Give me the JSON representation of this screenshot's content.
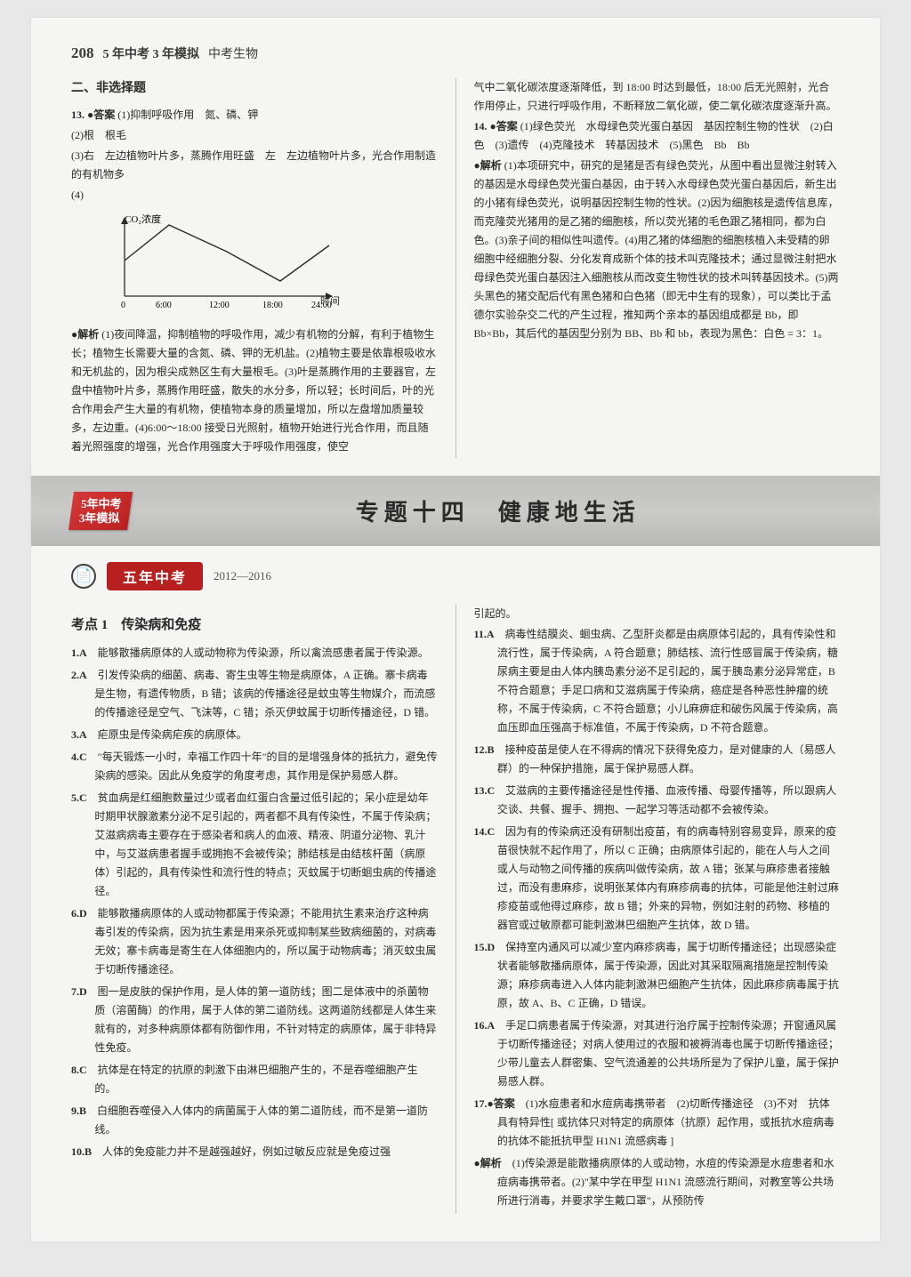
{
  "header": {
    "page_num": "208",
    "book_title": "5 年中考 3 年模拟",
    "book_sub": "中考生物"
  },
  "upper_left": {
    "section_head": "二、非选择题",
    "q13_label": "13.",
    "q13_ans_tag": "答案",
    "q13_1": "(1)抑制呼吸作用　氮、磷、钾",
    "q13_2": "(2)根　根毛",
    "q13_3": "(3)右　左边植物叶片多，蒸腾作用旺盛　左　左边植物叶片多，光合作用制造的有机物多",
    "q13_4": "(4)",
    "chart": {
      "y_label": "CO₂浓度",
      "x_label": "时间",
      "x_ticks": [
        "0",
        "6:00",
        "12:00",
        "18:00",
        "24:00"
      ],
      "points_x": [
        0,
        50,
        115,
        175,
        230
      ],
      "points_y": [
        55,
        15,
        45,
        78,
        38
      ],
      "axis_color": "#2a2a2a",
      "line_color": "#2a2a2a"
    },
    "jiexi_tag": "解析",
    "jiexi_body": "(1)夜间降温，抑制植物的呼吸作用，减少有机物的分解，有利于植物生长；植物生长需要大量的含氮、磷、钾的无机盐。(2)植物主要是依靠根吸收水和无机盐的，因为根尖成熟区生有大量根毛。(3)叶是蒸腾作用的主要器官，左盘中植物叶片多，蒸腾作用旺盛，散失的水分多，所以轻；长时间后，叶的光合作用会产生大量的有机物，使植物本身的质量增加，所以左盘增加质量较多，左边重。(4)6:00～18:00 接受日光照射，植物开始进行光合作用，而且随着光照强度的增强，光合作用强度大于呼吸作用强度，使空"
  },
  "upper_right": {
    "cont": "气中二氧化碳浓度逐渐降低，到 18:00 时达到最低，18:00 后无光照射，光合作用停止，只进行呼吸作用，不断释放二氧化碳，使二氧化碳浓度逐渐升高。",
    "q14_label": "14.",
    "q14_ans_tag": "答案",
    "q14_1": "(1)绿色荧光　水母绿色荧光蛋白基因　基因控制生物的性状　(2)白色　(3)遗传　(4)克隆技术　转基因技术　(5)黑色　Bb　Bb",
    "jiexi_tag": "解析",
    "jiexi_body": "(1)本项研究中，研究的是猪是否有绿色荧光，从图中看出显微注射转入的基因是水母绿色荧光蛋白基因，由于转入水母绿色荧光蛋白基因后，新生出的小猪有绿色荧光，说明基因控制生物的性状。(2)因为细胞核是遗传信息库，而克隆荧光猪用的是乙猪的细胞核，所以荧光猪的毛色跟乙猪相同，都为白色。(3)亲子间的相似性叫遗传。(4)用乙猪的体细胞的细胞核植入未受精的卵细胞中经细胞分裂、分化发育成新个体的技术叫克隆技术；通过显微注射把水母绿色荧光蛋白基因注入细胞核从而改变生物性状的技术叫转基因技术。(5)两头黑色的猪交配后代有黑色猪和白色猪（即无中生有的现象），可以类比于孟德尔实验杂交二代的产生过程，推知两个亲本的基因组成都是 Bb，即 Bb×Bb，其后代的基因型分别为 BB、Bb 和 bb，表现为黑色：白色 = 3：1。"
  },
  "banner": {
    "badge_l1": "5年中考",
    "badge_l2": "3年模拟",
    "title": "专题十四　健康地生活"
  },
  "midrow": {
    "pill": "五年中考",
    "years": "2012—2016"
  },
  "kaodian": "考点 1　传染病和免疫",
  "lower_left": [
    {
      "n": "1.A",
      "t": "能够散播病原体的人或动物称为传染源，所以禽流感患者属于传染源。"
    },
    {
      "n": "2.A",
      "t": "引发传染病的细菌、病毒、寄生虫等生物是病原体，A 正确。寨卡病毒是生物，有遗传物质，B 错；该病的传播途径是蚊虫等生物媒介，而流感的传播途径是空气、飞沫等，C 错；杀灭伊蚊属于切断传播途径，D 错。"
    },
    {
      "n": "3.A",
      "t": "疟原虫是传染病疟疾的病原体。"
    },
    {
      "n": "4.C",
      "t": "\"每天锻炼一小时，幸福工作四十年\"的目的是增强身体的抵抗力，避免传染病的感染。因此从免疫学的角度考虑，其作用是保护易感人群。"
    },
    {
      "n": "5.C",
      "t": "贫血病是红细胞数量过少或者血红蛋白含量过低引起的；呆小症是幼年时期甲状腺激素分泌不足引起的，两者都不具有传染性，不属于传染病；艾滋病病毒主要存在于感染者和病人的血液、精液、阴道分泌物、乳汁中，与艾滋病患者握手或拥抱不会被传染；肺结核是由结核杆菌（病原体）引起的，具有传染性和流行性的特点；灭蚊属于切断蛔虫病的传播途径。"
    },
    {
      "n": "6.D",
      "t": "能够散播病原体的人或动物都属于传染源；不能用抗生素来治疗这种病毒引发的传染病，因为抗生素是用来杀死或抑制某些致病细菌的，对病毒无效；寨卡病毒是寄生在人体细胞内的，所以属于动物病毒；消灭蚊虫属于切断传播途径。"
    },
    {
      "n": "7.D",
      "t": "图一是皮肤的保护作用，是人体的第一道防线；图二是体液中的杀菌物质（溶菌酶）的作用，属于人体的第二道防线。这两道防线都是人体生来就有的，对多种病原体都有防御作用，不针对特定的病原体，属于非特异性免疫。"
    },
    {
      "n": "8.C",
      "t": "抗体是在特定的抗原的刺激下由淋巴细胞产生的，不是吞噬细胞产生的。"
    },
    {
      "n": "9.B",
      "t": "白细胞吞噬侵入人体内的病菌属于人体的第二道防线，而不是第一道防线。"
    },
    {
      "n": "10.B",
      "t": "人体的免疫能力并不是越强越好，例如过敏反应就是免疫过强"
    }
  ],
  "lower_right_intro": "引起的。",
  "lower_right": [
    {
      "n": "11.A",
      "t": "病毒性结膜炎、蛔虫病、乙型肝炎都是由病原体引起的，具有传染性和流行性，属于传染病，A 符合题意；肺结核、流行性感冒属于传染病，糖尿病主要是由人体内胰岛素分泌不足引起的，属于胰岛素分泌异常症，B 不符合题意；手足口病和艾滋病属于传染病，癌症是各种恶性肿瘤的统称，不属于传染病，C 不符合题意；小儿麻痹症和破伤风属于传染病，高血压即血压强高于标准值，不属于传染病，D 不符合题意。"
    },
    {
      "n": "12.B",
      "t": "接种疫苗是使人在不得病的情况下获得免疫力，是对健康的人（易感人群）的一种保护措施，属于保护易感人群。"
    },
    {
      "n": "13.C",
      "t": "艾滋病的主要传播途径是性传播、血液传播、母婴传播等，所以跟病人交谈、共餐、握手、拥抱、一起学习等活动都不会被传染。"
    },
    {
      "n": "14.C",
      "t": "因为有的传染病还没有研制出疫苗，有的病毒特别容易变异，原来的疫苗很快就不起作用了，所以 C 正确；由病原体引起的，能在人与人之间或人与动物之间传播的疾病叫做传染病，故 A 错；张某与麻疹患者接触过，而没有患麻疹，说明张某体内有麻疹病毒的抗体，可能是他注射过麻疹疫苗或他得过麻疹，故 B 错；外来的异物，例如注射的药物、移植的器官或过敏原都可能刺激淋巴细胞产生抗体，故 D 错。"
    },
    {
      "n": "15.D",
      "t": "保持室内通风可以减少室内麻疹病毒，属于切断传播途径；出现感染症状者能够散播病原体，属于传染源，因此对其采取隔离措施是控制传染源；麻疹病毒进入人体内能刺激淋巴细胞产生抗体，因此麻疹病毒属于抗原，故 A、B、C 正确，D 错误。"
    },
    {
      "n": "16.A",
      "t": "手足口病患者属于传染源，对其进行治疗属于控制传染源；开窗通风属于切断传播途径；对病人使用过的衣服和被褥消毒也属于切断传播途径；少带儿童去人群密集、空气流通差的公共场所是为了保护儿童，属于保护易感人群。"
    },
    {
      "n": "17.",
      "tag": "答案",
      "t": "(1)水痘患者和水痘病毒携带者　(2)切断传播途径　(3)不对　抗体具有特异性[ 或抗体只对特定的病原体（抗原）起作用，或抵抗水痘病毒的抗体不能抵抗甲型 H1N1 流感病毒 ]"
    },
    {
      "n": "",
      "tag": "解析",
      "t": "(1)传染源是能散播病原体的人或动物，水痘的传染源是水痘患者和水痘病毒携带者。(2)\"某中学在甲型 H1N1 流感流行期间，对教室等公共场所进行消毒，并要求学生戴口罩\"，从预防传"
    }
  ]
}
